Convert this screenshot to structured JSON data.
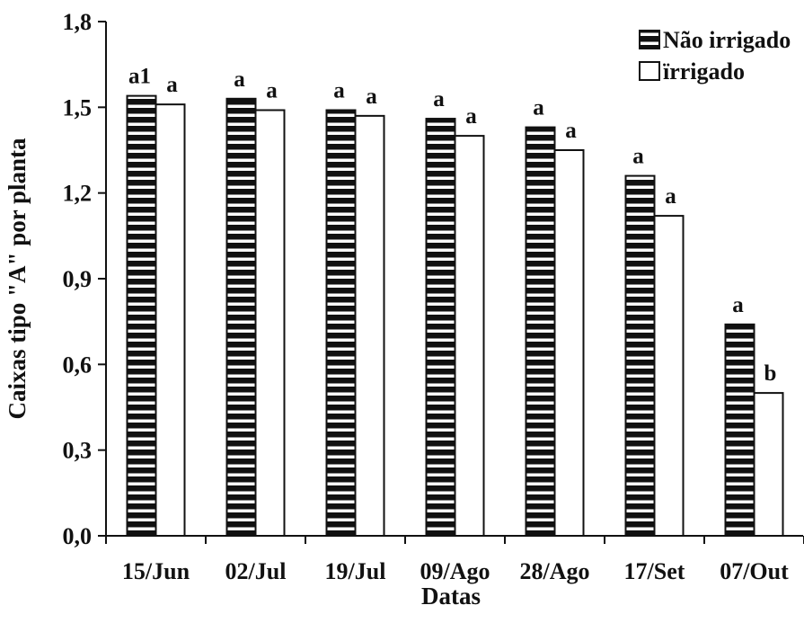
{
  "chart_data": {
    "type": "bar",
    "title": "",
    "xlabel": "Datas",
    "ylabel": "Caixas tipo \"A\" por planta",
    "categories": [
      "15/Jun",
      "02/Jul",
      "19/Jul",
      "09/Ago",
      "28/Ago",
      "17/Set",
      "07/Out"
    ],
    "series": [
      {
        "name": "Não irrigado",
        "fill": "striped",
        "values": [
          1.54,
          1.53,
          1.49,
          1.46,
          1.43,
          1.26,
          0.74
        ],
        "labels": [
          "a1",
          "a",
          "a",
          "a",
          "a",
          "a",
          "a"
        ]
      },
      {
        "name": "ïrrigado",
        "fill": "white",
        "values": [
          1.51,
          1.49,
          1.47,
          1.4,
          1.35,
          1.12,
          0.5
        ],
        "labels": [
          "a",
          "a",
          "a",
          "a",
          "a",
          "a",
          "b"
        ]
      }
    ],
    "ylim": [
      0,
      1.8
    ],
    "yticks": [
      "0,0",
      "0,3",
      "0,6",
      "0,9",
      "1,2",
      "1,5",
      "1,8"
    ],
    "yticks_values": [
      0,
      0.3,
      0.6,
      0.9,
      1.2,
      1.5,
      1.8
    ],
    "grid": false,
    "legend_position": "top-right",
    "colors": {
      "bar_stroke": "#111111",
      "stripe": "#111111",
      "stripe_gap": "#ffffff",
      "background": "#ffffff"
    }
  }
}
